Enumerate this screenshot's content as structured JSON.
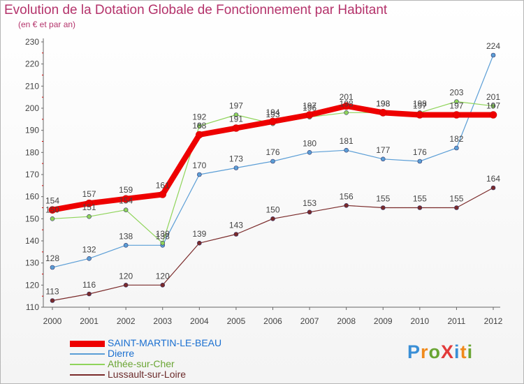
{
  "title": "Evolution de la Dotation Globale de Fonctionnement par Habitant",
  "subtitle": "(en € et par an)",
  "logo": {
    "text": "ProXiti",
    "letters": [
      "P",
      "r",
      "o",
      "X",
      "i",
      "t",
      "i"
    ],
    "colors": [
      "#3a8fd6",
      "#f08a1c",
      "#6aa534",
      "#e23a3a",
      "#3a8fd6",
      "#f08a1c",
      "#6aa534"
    ]
  },
  "chart_data": {
    "type": "line",
    "title": "Evolution de la Dotation Globale de Fonctionnement par Habitant",
    "subtitle": "(en € et par an)",
    "x": [
      "2000",
      "2001",
      "2002",
      "2003",
      "2004",
      "2005",
      "2006",
      "2007",
      "2008",
      "2009",
      "2010",
      "2011",
      "2012"
    ],
    "ylim": [
      110,
      230
    ],
    "yticks": [
      110,
      120,
      130,
      140,
      150,
      160,
      170,
      180,
      190,
      200,
      210,
      220,
      230
    ],
    "grid": false,
    "legend_position": "bottom-left",
    "series": [
      {
        "name": "Lussault-sur-Loire",
        "color": "#7a2a2a",
        "width": 1.2,
        "values": [
          113,
          116,
          120,
          120,
          139,
          143,
          150,
          153,
          156,
          155,
          155,
          155,
          164
        ]
      },
      {
        "name": "Dierre",
        "color": "#5b9ed6",
        "width": 1.2,
        "values": [
          128,
          132,
          138,
          138,
          170,
          173,
          176,
          180,
          181,
          177,
          176,
          182,
          224
        ]
      },
      {
        "name": "Athée-sur-Cher",
        "color": "#8fd45a",
        "width": 1.2,
        "values": [
          150,
          151,
          154,
          139,
          192,
          197,
          193,
          196,
          198,
          198,
          198,
          203,
          201
        ]
      },
      {
        "name": "SAINT-MARTIN-LE-BEAU",
        "color": "#ee0000",
        "width": 8,
        "values": [
          154,
          157,
          159,
          161,
          188,
          191,
          194,
          197,
          201,
          198,
          197,
          197,
          197
        ]
      }
    ],
    "legend_order": [
      "SAINT-MARTIN-LE-BEAU",
      "Dierre",
      "Athée-sur-Cher",
      "Lussault-sur-Loire"
    ]
  }
}
